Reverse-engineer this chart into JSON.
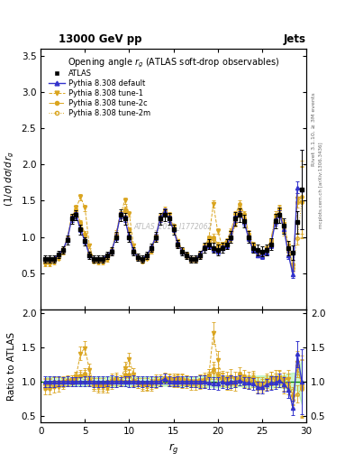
{
  "title_top": "13000 GeV pp",
  "title_right": "Jets",
  "plot_title": "Opening angle $r_g$ (ATLAS soft-drop observables)",
  "xlabel": "$r_g$",
  "ylabel_main": "$(1/\\sigma)\\,d\\sigma/d\\,r_g$",
  "ylabel_ratio": "Ratio to ATLAS",
  "right_label": "Rivet 3.1.10, ≥ 3M events",
  "right_label2": "mcplots.cern.ch [arXiv:1306.3436]",
  "watermark": "ATLAS_2019_I1772062",
  "atlas_x": [
    0.5,
    1.0,
    1.5,
    2.0,
    2.5,
    3.0,
    3.5,
    4.0,
    4.5,
    5.0,
    5.5,
    6.0,
    6.5,
    7.0,
    7.5,
    8.0,
    8.5,
    9.0,
    9.5,
    10.0,
    10.5,
    11.0,
    11.5,
    12.0,
    12.5,
    13.0,
    13.5,
    14.0,
    14.5,
    15.0,
    15.5,
    16.0,
    16.5,
    17.0,
    17.5,
    18.0,
    18.5,
    19.0,
    19.5,
    20.0,
    20.5,
    21.0,
    21.5,
    22.0,
    22.5,
    23.0,
    23.5,
    24.0,
    24.5,
    25.0,
    25.5,
    26.0,
    26.5,
    27.0,
    27.5,
    28.0,
    28.5,
    29.0,
    29.5
  ],
  "atlas_y": [
    0.7,
    0.7,
    0.7,
    0.76,
    0.82,
    0.96,
    1.25,
    1.3,
    1.1,
    0.94,
    0.75,
    0.7,
    0.7,
    0.7,
    0.75,
    0.8,
    1.0,
    1.3,
    1.25,
    1.0,
    0.8,
    0.72,
    0.7,
    0.75,
    0.85,
    1.0,
    1.25,
    1.3,
    1.25,
    1.1,
    0.9,
    0.8,
    0.75,
    0.7,
    0.7,
    0.75,
    0.85,
    0.9,
    0.85,
    0.82,
    0.85,
    0.9,
    1.0,
    1.25,
    1.3,
    1.22,
    1.0,
    0.85,
    0.82,
    0.8,
    0.82,
    0.9,
    1.22,
    1.3,
    1.15,
    0.85,
    0.78,
    1.2,
    1.65
  ],
  "atlas_yerr": [
    0.05,
    0.05,
    0.05,
    0.05,
    0.05,
    0.06,
    0.07,
    0.07,
    0.07,
    0.06,
    0.05,
    0.05,
    0.05,
    0.05,
    0.05,
    0.06,
    0.07,
    0.08,
    0.08,
    0.07,
    0.06,
    0.05,
    0.05,
    0.05,
    0.06,
    0.07,
    0.08,
    0.08,
    0.08,
    0.07,
    0.06,
    0.06,
    0.05,
    0.05,
    0.05,
    0.06,
    0.07,
    0.07,
    0.07,
    0.07,
    0.07,
    0.07,
    0.08,
    0.09,
    0.09,
    0.09,
    0.08,
    0.07,
    0.07,
    0.07,
    0.07,
    0.08,
    0.1,
    0.11,
    0.11,
    0.1,
    0.1,
    0.15,
    0.55
  ],
  "pythia_default_x": [
    0.5,
    1.0,
    1.5,
    2.0,
    2.5,
    3.0,
    3.5,
    4.0,
    4.5,
    5.0,
    5.5,
    6.0,
    6.5,
    7.0,
    7.5,
    8.0,
    8.5,
    9.0,
    9.5,
    10.0,
    10.5,
    11.0,
    11.5,
    12.0,
    12.5,
    13.0,
    13.5,
    14.0,
    14.5,
    15.0,
    15.5,
    16.0,
    16.5,
    17.0,
    17.5,
    18.0,
    18.5,
    19.0,
    19.5,
    20.0,
    20.5,
    21.0,
    21.5,
    22.0,
    22.5,
    23.0,
    23.5,
    24.0,
    24.5,
    25.0,
    25.5,
    26.0,
    26.5,
    27.0,
    27.5,
    28.0,
    28.5,
    29.0,
    29.5
  ],
  "pythia_default_y": [
    0.7,
    0.7,
    0.7,
    0.76,
    0.82,
    0.96,
    1.25,
    1.3,
    1.1,
    0.94,
    0.75,
    0.7,
    0.7,
    0.7,
    0.75,
    0.8,
    1.0,
    1.3,
    1.25,
    1.0,
    0.8,
    0.72,
    0.7,
    0.75,
    0.85,
    1.0,
    1.25,
    1.35,
    1.25,
    1.1,
    0.9,
    0.8,
    0.75,
    0.7,
    0.7,
    0.75,
    0.85,
    0.88,
    0.83,
    0.8,
    0.85,
    0.88,
    1.0,
    1.25,
    1.32,
    1.2,
    0.98,
    0.82,
    0.75,
    0.73,
    0.78,
    0.88,
    1.2,
    1.32,
    1.1,
    0.75,
    0.48,
    1.68,
    1.65
  ],
  "pythia_default_yerr": [
    0.02,
    0.02,
    0.02,
    0.02,
    0.02,
    0.03,
    0.04,
    0.04,
    0.03,
    0.03,
    0.02,
    0.02,
    0.02,
    0.02,
    0.02,
    0.03,
    0.04,
    0.04,
    0.04,
    0.03,
    0.03,
    0.02,
    0.02,
    0.02,
    0.03,
    0.04,
    0.04,
    0.04,
    0.04,
    0.03,
    0.03,
    0.02,
    0.02,
    0.02,
    0.02,
    0.03,
    0.03,
    0.03,
    0.03,
    0.03,
    0.03,
    0.03,
    0.04,
    0.04,
    0.04,
    0.04,
    0.04,
    0.03,
    0.03,
    0.03,
    0.03,
    0.04,
    0.05,
    0.05,
    0.05,
    0.05,
    0.05,
    0.08,
    0.55
  ],
  "tune1_x": [
    0.5,
    1.0,
    1.5,
    2.0,
    2.5,
    3.0,
    3.5,
    4.0,
    4.5,
    5.0,
    5.5,
    6.0,
    6.5,
    7.0,
    7.5,
    8.0,
    8.5,
    9.0,
    9.5,
    10.0,
    10.5,
    11.0,
    11.5,
    12.0,
    12.5,
    13.0,
    13.5,
    14.0,
    14.5,
    15.0,
    15.5,
    16.0,
    16.5,
    17.0,
    17.5,
    18.0,
    18.5,
    19.0,
    19.5,
    20.0,
    20.5,
    21.0,
    21.5,
    22.0,
    22.5,
    23.0,
    23.5,
    24.0,
    24.5,
    25.0,
    25.5,
    26.0,
    26.5,
    27.0,
    27.5,
    28.0,
    28.5,
    29.0,
    29.5
  ],
  "tune1_y": [
    0.62,
    0.62,
    0.64,
    0.7,
    0.78,
    0.96,
    1.28,
    1.4,
    1.55,
    1.4,
    0.88,
    0.68,
    0.64,
    0.64,
    0.68,
    0.78,
    1.0,
    1.3,
    1.5,
    1.32,
    0.88,
    0.7,
    0.66,
    0.7,
    0.8,
    0.98,
    1.26,
    1.35,
    1.3,
    1.14,
    0.94,
    0.82,
    0.76,
    0.7,
    0.7,
    0.76,
    0.86,
    0.98,
    1.45,
    1.08,
    0.88,
    0.86,
    0.96,
    1.18,
    1.33,
    1.22,
    0.98,
    0.88,
    0.8,
    0.78,
    0.84,
    0.94,
    1.24,
    1.38,
    1.18,
    0.88,
    0.6,
    1.53,
    1.48
  ],
  "tune1_yerr": [
    0.02,
    0.02,
    0.02,
    0.02,
    0.02,
    0.03,
    0.04,
    0.04,
    0.04,
    0.04,
    0.03,
    0.02,
    0.02,
    0.02,
    0.02,
    0.03,
    0.04,
    0.04,
    0.04,
    0.04,
    0.03,
    0.02,
    0.02,
    0.02,
    0.03,
    0.04,
    0.04,
    0.04,
    0.04,
    0.04,
    0.03,
    0.03,
    0.02,
    0.02,
    0.02,
    0.03,
    0.03,
    0.04,
    0.05,
    0.04,
    0.03,
    0.03,
    0.04,
    0.04,
    0.05,
    0.04,
    0.04,
    0.03,
    0.03,
    0.03,
    0.03,
    0.04,
    0.05,
    0.06,
    0.05,
    0.05,
    0.05,
    0.08,
    0.5
  ],
  "tune2c_x": [
    0.5,
    1.0,
    1.5,
    2.0,
    2.5,
    3.0,
    3.5,
    4.0,
    4.5,
    5.0,
    5.5,
    6.0,
    6.5,
    7.0,
    7.5,
    8.0,
    8.5,
    9.0,
    9.5,
    10.0,
    10.5,
    11.0,
    11.5,
    12.0,
    12.5,
    13.0,
    13.5,
    14.0,
    14.5,
    15.0,
    15.5,
    16.0,
    16.5,
    17.0,
    17.5,
    18.0,
    18.5,
    19.0,
    19.5,
    20.0,
    20.5,
    21.0,
    21.5,
    22.0,
    22.5,
    23.0,
    23.5,
    24.0,
    24.5,
    25.0,
    25.5,
    26.0,
    26.5,
    27.0,
    27.5,
    28.0,
    28.5,
    29.0,
    29.5
  ],
  "tune2c_y": [
    0.68,
    0.68,
    0.7,
    0.76,
    0.83,
    0.98,
    1.28,
    1.38,
    1.2,
    1.05,
    0.78,
    0.68,
    0.68,
    0.68,
    0.72,
    0.82,
    1.05,
    1.32,
    1.38,
    1.1,
    0.82,
    0.72,
    0.68,
    0.73,
    0.85,
    1.02,
    1.28,
    1.38,
    1.28,
    1.12,
    0.92,
    0.82,
    0.76,
    0.7,
    0.7,
    0.76,
    0.88,
    0.98,
    1.0,
    0.9,
    0.9,
    0.95,
    1.08,
    1.32,
    1.45,
    1.32,
    1.05,
    0.9,
    0.8,
    0.76,
    0.82,
    0.94,
    1.3,
    1.38,
    1.12,
    0.84,
    0.62,
    1.48,
    1.55
  ],
  "tune2c_yerr": [
    0.02,
    0.02,
    0.02,
    0.02,
    0.02,
    0.03,
    0.04,
    0.04,
    0.03,
    0.03,
    0.02,
    0.02,
    0.02,
    0.02,
    0.02,
    0.03,
    0.04,
    0.04,
    0.04,
    0.03,
    0.02,
    0.02,
    0.02,
    0.02,
    0.03,
    0.03,
    0.04,
    0.04,
    0.04,
    0.03,
    0.03,
    0.02,
    0.02,
    0.02,
    0.02,
    0.02,
    0.03,
    0.03,
    0.04,
    0.03,
    0.03,
    0.03,
    0.04,
    0.04,
    0.05,
    0.04,
    0.04,
    0.03,
    0.03,
    0.03,
    0.03,
    0.04,
    0.05,
    0.05,
    0.05,
    0.04,
    0.05,
    0.08,
    0.5
  ],
  "tune2m_x": [
    0.5,
    1.0,
    1.5,
    2.0,
    2.5,
    3.0,
    3.5,
    4.0,
    4.5,
    5.0,
    5.5,
    6.0,
    6.5,
    7.0,
    7.5,
    8.0,
    8.5,
    9.0,
    9.5,
    10.0,
    10.5,
    11.0,
    11.5,
    12.0,
    12.5,
    13.0,
    13.5,
    14.0,
    14.5,
    15.0,
    15.5,
    16.0,
    16.5,
    17.0,
    17.5,
    18.0,
    18.5,
    19.0,
    19.5,
    20.0,
    20.5,
    21.0,
    21.5,
    22.0,
    22.5,
    23.0,
    23.5,
    24.0,
    24.5,
    25.0,
    25.5,
    26.0,
    26.5,
    27.0,
    27.5,
    28.0,
    28.5,
    29.0,
    29.5
  ],
  "tune2m_y": [
    0.67,
    0.67,
    0.69,
    0.75,
    0.81,
    0.96,
    1.25,
    1.35,
    1.18,
    1.02,
    0.76,
    0.66,
    0.66,
    0.66,
    0.71,
    0.8,
    1.02,
    1.3,
    1.35,
    1.08,
    0.81,
    0.7,
    0.66,
    0.71,
    0.82,
    0.99,
    1.25,
    1.35,
    1.25,
    1.09,
    0.89,
    0.79,
    0.73,
    0.67,
    0.67,
    0.73,
    0.85,
    0.95,
    0.97,
    0.86,
    0.87,
    0.9,
    1.0,
    1.24,
    1.38,
    1.25,
    1.0,
    0.86,
    0.76,
    0.73,
    0.79,
    0.89,
    1.24,
    1.32,
    1.07,
    0.79,
    0.57,
    0.98,
    1.48
  ],
  "tune2m_yerr": [
    0.02,
    0.02,
    0.02,
    0.02,
    0.02,
    0.03,
    0.04,
    0.04,
    0.03,
    0.03,
    0.02,
    0.02,
    0.02,
    0.02,
    0.02,
    0.03,
    0.04,
    0.04,
    0.04,
    0.03,
    0.02,
    0.02,
    0.02,
    0.02,
    0.03,
    0.03,
    0.04,
    0.04,
    0.04,
    0.03,
    0.03,
    0.02,
    0.02,
    0.02,
    0.02,
    0.02,
    0.03,
    0.03,
    0.04,
    0.03,
    0.03,
    0.03,
    0.04,
    0.04,
    0.05,
    0.04,
    0.04,
    0.03,
    0.03,
    0.03,
    0.03,
    0.04,
    0.05,
    0.05,
    0.05,
    0.04,
    0.05,
    0.08,
    0.48
  ],
  "color_default": "#3333CC",
  "color_orange": "#DAA520",
  "ylim_main": [
    0.0,
    3.6
  ],
  "ylim_ratio": [
    0.4,
    2.05
  ],
  "xlim": [
    0,
    30
  ],
  "yticks_main": [
    0.5,
    1.0,
    1.5,
    2.0,
    2.5,
    3.0,
    3.5
  ],
  "yticks_ratio": [
    0.5,
    1.0,
    1.5,
    2.0
  ],
  "xticks": [
    0,
    5,
    10,
    15,
    20,
    25,
    30
  ],
  "band_color": "#90EE90",
  "band_alpha": 0.45
}
